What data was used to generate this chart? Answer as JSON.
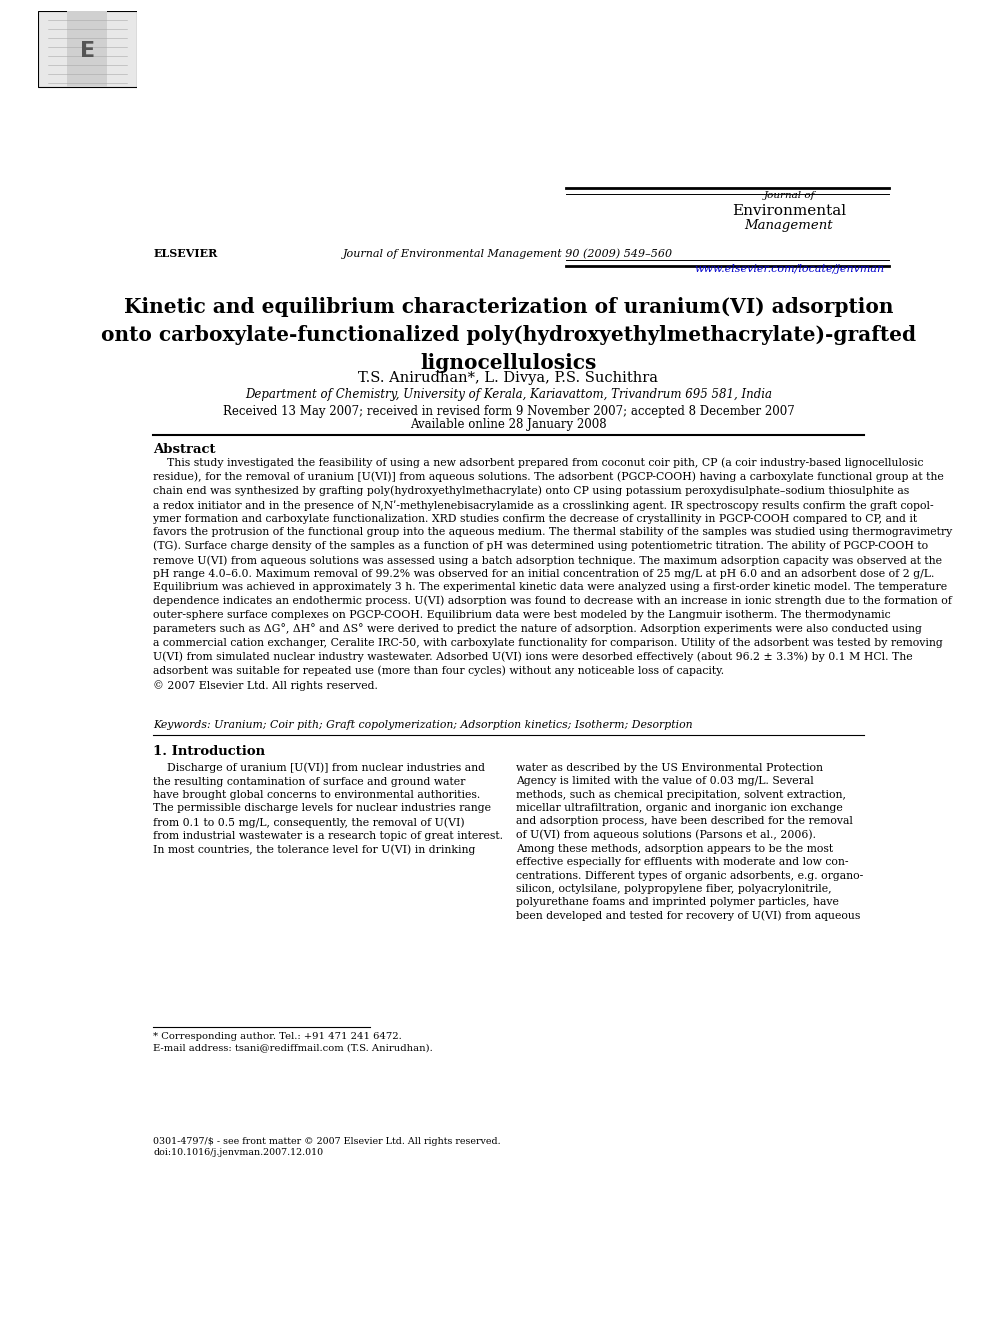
{
  "bg_color": "#ffffff",
  "page_width": 9.92,
  "page_height": 13.23,
  "header": {
    "elsevier_logo_text": "ELSEVIER",
    "journal_center_text": "Journal of Environmental Management 90 (2009) 549–560",
    "journal_right_line1": "Journal of",
    "journal_right_line2": "Environmental",
    "journal_right_line3": "Management",
    "journal_url": "www.elsevier.com/locate/jenvman"
  },
  "article_title": "Kinetic and equilibrium characterization of uranium(VI) adsorption\nonto carboxylate-functionalized poly(hydroxyethylmethacrylate)-grafted\nlignocellulosics",
  "authors": "T.S. Anirudhan*, L. Divya, P.S. Suchithra",
  "affiliation": "Department of Chemistry, University of Kerala, Kariavattom, Trivandrum 695 581, India",
  "received_text": "Received 13 May 2007; received in revised form 9 November 2007; accepted 8 December 2007",
  "available_text": "Available online 28 January 2008",
  "abstract_heading": "Abstract",
  "abstract_text": "    This study investigated the feasibility of using a new adsorbent prepared from coconut coir pith, CP (a coir industry-based lignocellulosic\nresidue), for the removal of uranium [U(VI)] from aqueous solutions. The adsorbent (PGCP-COOH) having a carboxylate functional group at the\nchain end was synthesized by grafting poly(hydroxyethylmethacrylate) onto CP using potassium peroxydisulphate–sodium thiosulphite as\na redox initiator and in the presence of N,Nʹ-methylenebisacrylamide as a crosslinking agent. IR spectroscopy results confirm the graft copol-\nymer formation and carboxylate functionalization. XRD studies confirm the decrease of crystallinity in PGCP-COOH compared to CP, and it\nfavors the protrusion of the functional group into the aqueous medium. The thermal stability of the samples was studied using thermogravimetry\n(TG). Surface charge density of the samples as a function of pH was determined using potentiometric titration. The ability of PGCP-COOH to\nremove U(VI) from aqueous solutions was assessed using a batch adsorption technique. The maximum adsorption capacity was observed at the\npH range 4.0–6.0. Maximum removal of 99.2% was observed for an initial concentration of 25 mg/L at pH 6.0 and an adsorbent dose of 2 g/L.\nEquilibrium was achieved in approximately 3 h. The experimental kinetic data were analyzed using a first-order kinetic model. The temperature\ndependence indicates an endothermic process. U(VI) adsorption was found to decrease with an increase in ionic strength due to the formation of\nouter-sphere surface complexes on PGCP-COOH. Equilibrium data were best modeled by the Langmuir isotherm. The thermodynamic\nparameters such as ΔG°, ΔH° and ΔS° were derived to predict the nature of adsorption. Adsorption experiments were also conducted using\na commercial cation exchanger, Ceralite IRC-50, with carboxylate functionality for comparison. Utility of the adsorbent was tested by removing\nU(VI) from simulated nuclear industry wastewater. Adsorbed U(VI) ions were desorbed effectively (about 96.2 ± 3.3%) by 0.1 M HCl. The\nadsorbent was suitable for repeated use (more than four cycles) without any noticeable loss of capacity.\n© 2007 Elsevier Ltd. All rights reserved.",
  "keywords_text": "Keywords: Uranium; Coir pith; Graft copolymerization; Adsorption kinetics; Isotherm; Desorption",
  "intro_heading": "1. Introduction",
  "intro_left": "    Discharge of uranium [U(VI)] from nuclear industries and\nthe resulting contamination of surface and ground water\nhave brought global concerns to environmental authorities.\nThe permissible discharge levels for nuclear industries range\nfrom 0.1 to 0.5 mg/L, consequently, the removal of U(VI)\nfrom industrial wastewater is a research topic of great interest.\nIn most countries, the tolerance level for U(VI) in drinking",
  "intro_right": "water as described by the US Environmental Protection\nAgency is limited with the value of 0.03 mg/L. Several\nmethods, such as chemical precipitation, solvent extraction,\nmicellar ultrafiltration, organic and inorganic ion exchange\nand adsorption process, have been described for the removal\nof U(VI) from aqueous solutions (Parsons et al., 2006).\nAmong these methods, adsorption appears to be the most\neffective especially for effluents with moderate and low con-\ncentrations. Different types of organic adsorbents, e.g. organo-\nsilicon, octylsilane, polypropylene fiber, polyacrylonitrile,\npolyurethane foams and imprinted polymer particles, have\nbeen developed and tested for recovery of U(VI) from aqueous",
  "footnote_star": "* Corresponding author. Tel.: +91 471 241 6472.",
  "footnote_email": "E-mail address: tsani@rediffmail.com (T.S. Anirudhan).",
  "footer_left": "0301-4797/$ - see front matter © 2007 Elsevier Ltd. All rights reserved.",
  "footer_doi": "doi:10.1016/j.jenvman.2007.12.010"
}
